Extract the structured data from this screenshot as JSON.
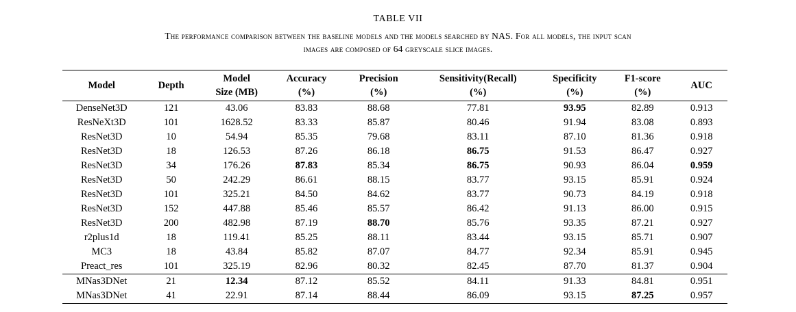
{
  "table": {
    "title": "TABLE VII",
    "caption_line1": "The performance comparison between the baseline models and the models searched by NAS. For all models, the input scan",
    "caption_line2": "images are composed of 64 greyscale slice images.",
    "columns": [
      {
        "label": "Model",
        "sub": ""
      },
      {
        "label": "Depth",
        "sub": ""
      },
      {
        "label": "Model",
        "sub": "Size (MB)"
      },
      {
        "label": "Accuracy",
        "sub": "(%)"
      },
      {
        "label": "Precision",
        "sub": "(%)"
      },
      {
        "label": "Sensitivity(Recall)",
        "sub": "(%)"
      },
      {
        "label": "Specificity",
        "sub": "(%)"
      },
      {
        "label": "F1-score",
        "sub": "(%)"
      },
      {
        "label": "AUC",
        "sub": ""
      }
    ],
    "group_start_row": 12,
    "rows": [
      {
        "cells": [
          "DenseNet3D",
          "121",
          "43.06",
          "83.83",
          "88.68",
          "77.81",
          "93.95",
          "82.89",
          "0.913"
        ],
        "bold": [
          6
        ]
      },
      {
        "cells": [
          "ResNeXt3D",
          "101",
          "1628.52",
          "83.33",
          "85.87",
          "80.46",
          "91.94",
          "83.08",
          "0.893"
        ],
        "bold": []
      },
      {
        "cells": [
          "ResNet3D",
          "10",
          "54.94",
          "85.35",
          "79.68",
          "83.11",
          "87.10",
          "81.36",
          "0.918"
        ],
        "bold": []
      },
      {
        "cells": [
          "ResNet3D",
          "18",
          "126.53",
          "87.26",
          "86.18",
          "86.75",
          "91.53",
          "86.47",
          "0.927"
        ],
        "bold": [
          5
        ]
      },
      {
        "cells": [
          "ResNet3D",
          "34",
          "176.26",
          "87.83",
          "85.34",
          "86.75",
          "90.93",
          "86.04",
          "0.959"
        ],
        "bold": [
          3,
          5,
          8
        ]
      },
      {
        "cells": [
          "ResNet3D",
          "50",
          "242.29",
          "86.61",
          "88.15",
          "83.77",
          "93.15",
          "85.91",
          "0.924"
        ],
        "bold": []
      },
      {
        "cells": [
          "ResNet3D",
          "101",
          "325.21",
          "84.50",
          "84.62",
          "83.77",
          "90.73",
          "84.19",
          "0.918"
        ],
        "bold": []
      },
      {
        "cells": [
          "ResNet3D",
          "152",
          "447.88",
          "85.46",
          "85.57",
          "86.42",
          "91.13",
          "86.00",
          "0.915"
        ],
        "bold": []
      },
      {
        "cells": [
          "ResNet3D",
          "200",
          "482.98",
          "87.19",
          "88.70",
          "85.76",
          "93.35",
          "87.21",
          "0.927"
        ],
        "bold": [
          4
        ]
      },
      {
        "cells": [
          "r2plus1d",
          "18",
          "119.41",
          "85.25",
          "88.11",
          "83.44",
          "93.15",
          "85.71",
          "0.907"
        ],
        "bold": []
      },
      {
        "cells": [
          "MC3",
          "18",
          "43.84",
          "85.82",
          "87.07",
          "84.77",
          "92.34",
          "85.91",
          "0.945"
        ],
        "bold": []
      },
      {
        "cells": [
          "Preact_res",
          "101",
          "325.19",
          "82.96",
          "80.32",
          "82.45",
          "87.70",
          "81.37",
          "0.904"
        ],
        "bold": []
      },
      {
        "cells": [
          "MNas3DNet",
          "21",
          "12.34",
          "87.12",
          "85.52",
          "84.11",
          "91.33",
          "84.81",
          "0.951"
        ],
        "bold": [
          2
        ]
      },
      {
        "cells": [
          "MNas3DNet",
          "41",
          "22.91",
          "87.14",
          "88.44",
          "86.09",
          "93.15",
          "87.25",
          "0.957"
        ],
        "bold": [
          7
        ]
      }
    ]
  }
}
